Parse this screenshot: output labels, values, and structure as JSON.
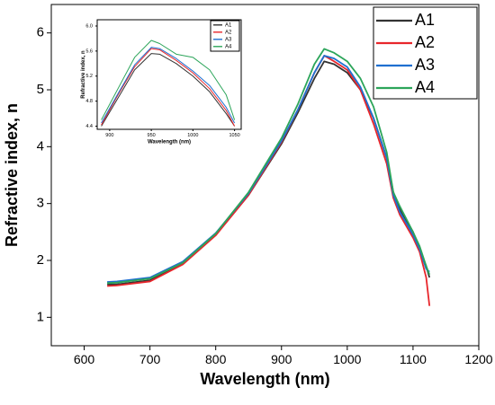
{
  "chart_data": [
    {
      "type": "line",
      "xlabel": "Wavelength (nm)",
      "ylabel": "Refractive index, n",
      "x": [
        635,
        650,
        700,
        750,
        800,
        850,
        900,
        925,
        950,
        965,
        980,
        1000,
        1020,
        1040,
        1060,
        1070,
        1080,
        1100,
        1110,
        1120,
        1125
      ],
      "series": [
        {
          "name": "A1",
          "color": "#333333",
          "values": [
            1.58,
            1.58,
            1.65,
            1.95,
            2.45,
            3.15,
            4.05,
            4.6,
            5.2,
            5.5,
            5.45,
            5.3,
            5.0,
            4.5,
            3.8,
            3.2,
            2.9,
            2.5,
            2.2,
            1.9,
            1.7
          ]
        },
        {
          "name": "A2",
          "color": "#e8262b",
          "values": [
            1.55,
            1.56,
            1.63,
            1.93,
            2.44,
            3.15,
            4.08,
            4.65,
            5.3,
            5.6,
            5.5,
            5.35,
            5.0,
            4.4,
            3.7,
            3.1,
            2.8,
            2.4,
            2.15,
            1.7,
            1.2
          ]
        },
        {
          "name": "A3",
          "color": "#1f6fd0",
          "values": [
            1.62,
            1.63,
            1.7,
            1.98,
            2.48,
            3.18,
            4.1,
            4.65,
            5.3,
            5.6,
            5.55,
            5.4,
            5.05,
            4.5,
            3.8,
            3.15,
            2.85,
            2.45,
            2.2,
            1.85,
            1.8
          ]
        },
        {
          "name": "A4",
          "color": "#2ca55a",
          "values": [
            1.6,
            1.61,
            1.68,
            1.96,
            2.47,
            3.2,
            4.15,
            4.75,
            5.45,
            5.72,
            5.65,
            5.5,
            5.2,
            4.7,
            3.9,
            3.2,
            2.95,
            2.5,
            2.25,
            1.9,
            1.75
          ]
        }
      ],
      "xlim": [
        550,
        1200
      ],
      "xticks": [
        600,
        700,
        800,
        900,
        1000,
        1100,
        1200
      ],
      "ylim": [
        0.5,
        6.5
      ],
      "yticks": [
        1,
        2,
        3,
        4,
        5,
        6
      ],
      "legend": "upper right"
    },
    {
      "type": "line",
      "xlabel": "Wavelength (nm)",
      "ylabel": "Refractive index, n",
      "x": [
        890,
        910,
        930,
        950,
        960,
        980,
        1000,
        1020,
        1040,
        1050
      ],
      "series": [
        {
          "name": "A1",
          "color": "#333333",
          "values": [
            4.4,
            4.85,
            5.3,
            5.56,
            5.55,
            5.4,
            5.2,
            4.95,
            4.6,
            4.4
          ]
        },
        {
          "name": "A2",
          "color": "#e8262b",
          "values": [
            4.42,
            4.9,
            5.35,
            5.64,
            5.62,
            5.45,
            5.25,
            5.0,
            4.65,
            4.4
          ]
        },
        {
          "name": "A3",
          "color": "#1f6fd0",
          "values": [
            4.45,
            4.92,
            5.38,
            5.66,
            5.64,
            5.48,
            5.28,
            5.05,
            4.7,
            4.45
          ]
        },
        {
          "name": "A4",
          "color": "#2ca55a",
          "values": [
            4.5,
            5.0,
            5.5,
            5.77,
            5.72,
            5.55,
            5.5,
            5.3,
            4.9,
            4.5
          ]
        }
      ],
      "xlim": [
        885,
        1058
      ],
      "xticks": [
        900,
        950,
        1000,
        1050
      ],
      "ylim": [
        4.35,
        6.1
      ],
      "yticks": [
        {
          "value": 4.4,
          "label": "4.4"
        },
        {
          "value": 4.8,
          "label": "4.8"
        },
        {
          "value": 5.2,
          "label": "5.2"
        },
        {
          "value": 5.6,
          "label": "5.6"
        },
        {
          "value": 6.0,
          "label": "6.0"
        }
      ],
      "legend": "upper right"
    }
  ]
}
